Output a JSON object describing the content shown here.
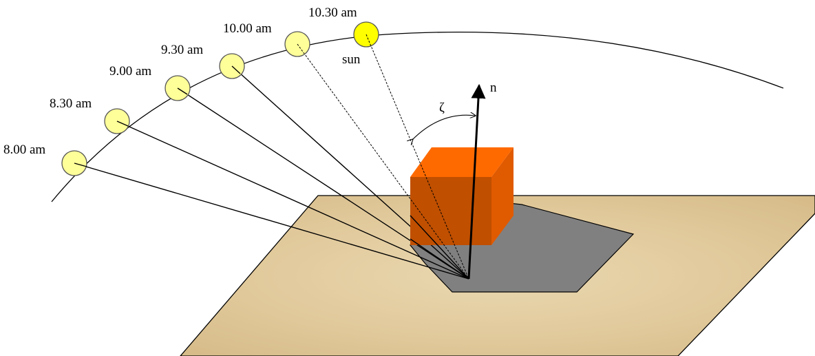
{
  "diagram": {
    "time_labels": [
      "8.00 am",
      "8.30 am",
      "9.00 am",
      "9.30 am",
      "10.00 am",
      "10.30 am"
    ],
    "sun_label": "sun",
    "normal_label": "n",
    "angle_label": "ζ",
    "colors": {
      "past_sun_fill": "#ffff99",
      "current_sun_fill": "#ffff00",
      "ground_fill": "#e2cc9f",
      "shadow_fill": "#808080",
      "block_front": "#c04f00",
      "block_top": "#ff6a00",
      "block_side": "#e05a00"
    }
  }
}
